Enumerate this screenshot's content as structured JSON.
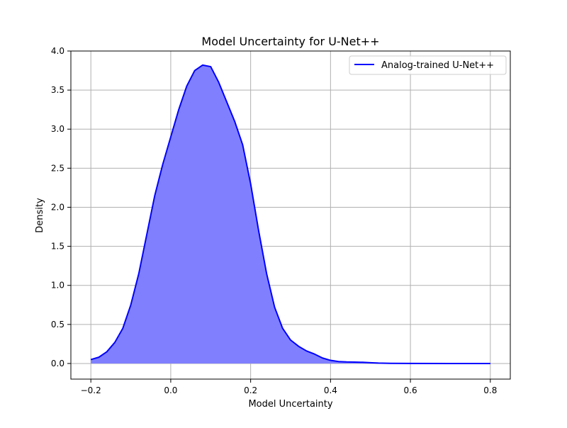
{
  "chart_data": {
    "type": "area",
    "title": "Model Uncertainty for U-Net++",
    "xlabel": "Model Uncertainty",
    "ylabel": "Density",
    "xlim": [
      -0.25,
      0.85
    ],
    "ylim": [
      -0.2,
      4.0
    ],
    "xticks": [
      -0.2,
      0.0,
      0.2,
      0.4,
      0.6,
      0.8
    ],
    "xtick_labels": [
      "−0.2",
      "0.0",
      "0.2",
      "0.4",
      "0.6",
      "0.8"
    ],
    "yticks": [
      0.0,
      0.5,
      1.0,
      1.5,
      2.0,
      2.5,
      3.0,
      3.5,
      4.0
    ],
    "ytick_labels": [
      "0.0",
      "0.5",
      "1.0",
      "1.5",
      "2.0",
      "2.5",
      "3.0",
      "3.5",
      "4.0"
    ],
    "grid": true,
    "legend_position": "top-right",
    "series": [
      {
        "name": "Analog-trained U-Net++",
        "line_color": "#0000ff",
        "fill_color": "#8080ff",
        "x": [
          -0.2,
          -0.18,
          -0.16,
          -0.14,
          -0.12,
          -0.1,
          -0.08,
          -0.06,
          -0.04,
          -0.02,
          0.0,
          0.02,
          0.04,
          0.06,
          0.08,
          0.1,
          0.12,
          0.14,
          0.16,
          0.18,
          0.2,
          0.22,
          0.24,
          0.26,
          0.28,
          0.3,
          0.32,
          0.34,
          0.36,
          0.38,
          0.4,
          0.42,
          0.44,
          0.46,
          0.48,
          0.5,
          0.52,
          0.55,
          0.6,
          0.7,
          0.8
        ],
        "y": [
          0.05,
          0.08,
          0.15,
          0.27,
          0.45,
          0.75,
          1.15,
          1.65,
          2.15,
          2.55,
          2.9,
          3.25,
          3.55,
          3.75,
          3.82,
          3.8,
          3.6,
          3.35,
          3.1,
          2.8,
          2.3,
          1.7,
          1.15,
          0.72,
          0.45,
          0.3,
          0.22,
          0.16,
          0.12,
          0.07,
          0.04,
          0.025,
          0.02,
          0.018,
          0.015,
          0.01,
          0.005,
          0.002,
          0.001,
          0.0,
          0.0
        ]
      }
    ]
  }
}
